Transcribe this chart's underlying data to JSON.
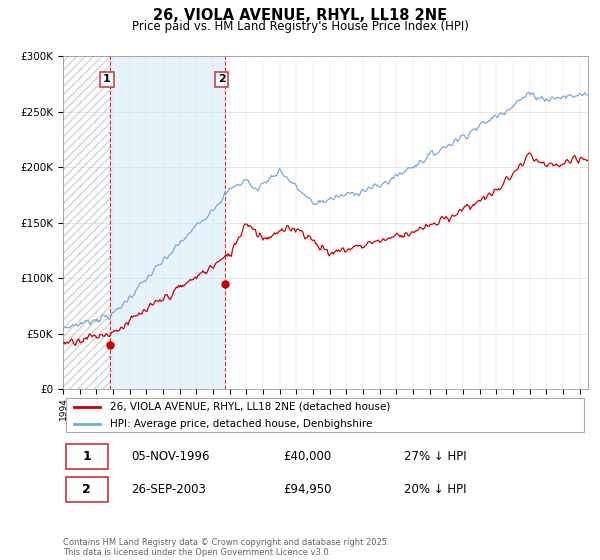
{
  "title": "26, VIOLA AVENUE, RHYL, LL18 2NE",
  "subtitle": "Price paid vs. HM Land Registry's House Price Index (HPI)",
  "red_label": "26, VIOLA AVENUE, RHYL, LL18 2NE (detached house)",
  "blue_label": "HPI: Average price, detached house, Denbighshire",
  "annotation1_date": "05-NOV-1996",
  "annotation1_price": "£40,000",
  "annotation1_hpi": "27% ↓ HPI",
  "annotation2_date": "26-SEP-2003",
  "annotation2_price": "£94,950",
  "annotation2_hpi": "20% ↓ HPI",
  "footer": "Contains HM Land Registry data © Crown copyright and database right 2025.\nThis data is licensed under the Open Government Licence v3.0.",
  "ylim_max": 300000,
  "red_color": "#cc0000",
  "blue_color": "#7aaadd",
  "marker1_year": 1996.84,
  "marker1_val": 40000,
  "marker2_year": 2003.73,
  "marker2_val": 94950,
  "xmin": 1994,
  "xmax": 2025.5
}
